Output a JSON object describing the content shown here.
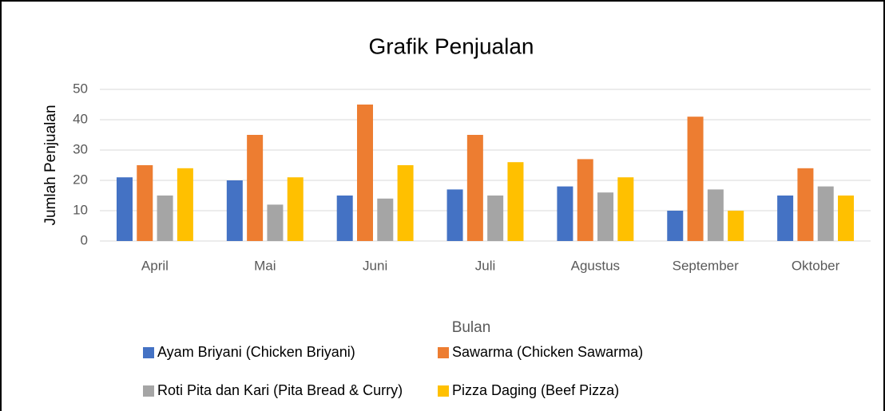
{
  "chart_data": {
    "type": "bar",
    "title": "Grafik Penjualan",
    "y_label": "Jumlah Penjualan",
    "x_label": "Bulan",
    "categories": [
      "April",
      "Mai",
      "Juni",
      "Juli",
      "Agustus",
      "September",
      "Oktober"
    ],
    "series": [
      {
        "name": "Ayam Briyani (Chicken Briyani)",
        "color": "#4472c4",
        "values": [
          21,
          20,
          15,
          17,
          18,
          10,
          15
        ]
      },
      {
        "name": "Sawarma (Chicken Sawarma)",
        "color": "#ed7d31",
        "values": [
          25,
          35,
          45,
          35,
          27,
          41,
          24
        ]
      },
      {
        "name": "Roti Pita dan Kari (Pita Bread & Curry)",
        "color": "#a5a5a5",
        "values": [
          15,
          12,
          14,
          15,
          16,
          17,
          18
        ]
      },
      {
        "name": "Pizza Daging (Beef Pizza)",
        "color": "#ffc000",
        "values": [
          24,
          21,
          25,
          26,
          21,
          10,
          15
        ]
      }
    ],
    "ylim": [
      0,
      50
    ],
    "yticks": [
      0,
      10,
      20,
      30,
      40,
      50
    ],
    "grid": true,
    "legend": "bottom"
  }
}
